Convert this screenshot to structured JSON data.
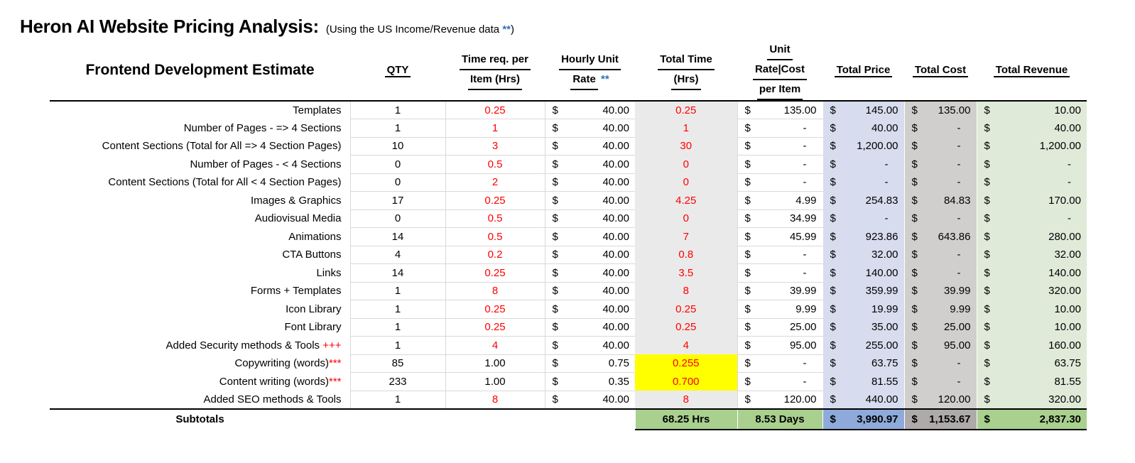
{
  "page": {
    "title": "Heron AI Website Pricing Analysis:",
    "subtitle": {
      "prefix": "(Using the US Income/Revenue data ",
      "stars": "**",
      "suffix": ")"
    }
  },
  "colors": {
    "red": "#FF0000",
    "star_blue": "#2E75B6",
    "gridline": "#D9D9D9",
    "total_time_fill": "#EBEAEA",
    "total_price_fill": "#D7DCEE",
    "total_cost_fill": "#D1CECE",
    "total_revenue_fill": "#DFEAD9",
    "highlight_yellow": "#FFFF00",
    "subtotal_green": "#A9D08E",
    "subtotal_blue": "#8EAADB",
    "subtotal_gray": "#AEAAAA"
  },
  "table": {
    "section_title": "Frontend Development Estimate",
    "currency_symbol": "$",
    "headers": {
      "qty": "QTY",
      "time_req": [
        "Time req. per",
        "Item (Hrs)"
      ],
      "hourly_rate": [
        "Hourly Unit",
        "Rate"
      ],
      "hourly_rate_stars": "**",
      "total_time": [
        "Total Time",
        "(Hrs)"
      ],
      "unit_rate_cost": [
        "Unit",
        "Rate|Cost",
        "per Item"
      ],
      "total_price": "Total Price",
      "total_cost": "Total Cost",
      "total_revenue": "Total Revenue"
    },
    "rows": [
      {
        "label": "Templates",
        "label_suffix": "",
        "qty": "1",
        "time_req": "0.25",
        "time_req_red": true,
        "hourly_rate": "40.00",
        "total_time": "0.25",
        "total_time_yellow": false,
        "unit_rate_cost": "135.00",
        "total_price": "145.00",
        "total_cost": "135.00",
        "total_revenue": "10.00"
      },
      {
        "label": "Number of Pages - => 4 Sections",
        "label_suffix": "",
        "qty": "1",
        "time_req": "1",
        "time_req_red": true,
        "hourly_rate": "40.00",
        "total_time": "1",
        "total_time_yellow": false,
        "unit_rate_cost": "-",
        "total_price": "40.00",
        "total_cost": "-",
        "total_revenue": "40.00"
      },
      {
        "label": "Content Sections (Total for All => 4 Section Pages)",
        "label_suffix": "",
        "qty": "10",
        "time_req": "3",
        "time_req_red": true,
        "hourly_rate": "40.00",
        "total_time": "30",
        "total_time_yellow": false,
        "unit_rate_cost": "-",
        "total_price": "1,200.00",
        "total_cost": "-",
        "total_revenue": "1,200.00"
      },
      {
        "label": "Number of Pages - < 4 Sections",
        "label_suffix": "",
        "qty": "0",
        "time_req": "0.5",
        "time_req_red": true,
        "hourly_rate": "40.00",
        "total_time": "0",
        "total_time_yellow": false,
        "unit_rate_cost": "-",
        "total_price": "-",
        "total_cost": "-",
        "total_revenue": "-"
      },
      {
        "label": "Content Sections (Total for All < 4 Section Pages)",
        "label_suffix": "",
        "qty": "0",
        "time_req": "2",
        "time_req_red": true,
        "hourly_rate": "40.00",
        "total_time": "0",
        "total_time_yellow": false,
        "unit_rate_cost": "-",
        "total_price": "-",
        "total_cost": "-",
        "total_revenue": "-"
      },
      {
        "label": "Images & Graphics",
        "label_suffix": "",
        "qty": "17",
        "time_req": "0.25",
        "time_req_red": true,
        "hourly_rate": "40.00",
        "total_time": "4.25",
        "total_time_yellow": false,
        "unit_rate_cost": "4.99",
        "total_price": "254.83",
        "total_cost": "84.83",
        "total_revenue": "170.00"
      },
      {
        "label": "Audiovisual Media",
        "label_suffix": "",
        "qty": "0",
        "time_req": "0.5",
        "time_req_red": true,
        "hourly_rate": "40.00",
        "total_time": "0",
        "total_time_yellow": false,
        "unit_rate_cost": "34.99",
        "total_price": "-",
        "total_cost": "-",
        "total_revenue": "-"
      },
      {
        "label": "Animations",
        "label_suffix": "",
        "qty": "14",
        "time_req": "0.5",
        "time_req_red": true,
        "hourly_rate": "40.00",
        "total_time": "7",
        "total_time_yellow": false,
        "unit_rate_cost": "45.99",
        "total_price": "923.86",
        "total_cost": "643.86",
        "total_revenue": "280.00"
      },
      {
        "label": "CTA Buttons",
        "label_suffix": "",
        "qty": "4",
        "time_req": "0.2",
        "time_req_red": true,
        "hourly_rate": "40.00",
        "total_time": "0.8",
        "total_time_yellow": false,
        "unit_rate_cost": "-",
        "total_price": "32.00",
        "total_cost": "-",
        "total_revenue": "32.00"
      },
      {
        "label": "Links",
        "label_suffix": "",
        "qty": "14",
        "time_req": "0.25",
        "time_req_red": true,
        "hourly_rate": "40.00",
        "total_time": "3.5",
        "total_time_yellow": false,
        "unit_rate_cost": "-",
        "total_price": "140.00",
        "total_cost": "-",
        "total_revenue": "140.00"
      },
      {
        "label": "Forms + Templates",
        "label_suffix": "",
        "qty": "1",
        "time_req": "8",
        "time_req_red": true,
        "hourly_rate": "40.00",
        "total_time": "8",
        "total_time_yellow": false,
        "unit_rate_cost": "39.99",
        "total_price": "359.99",
        "total_cost": "39.99",
        "total_revenue": "320.00"
      },
      {
        "label": "Icon Library",
        "label_suffix": "",
        "qty": "1",
        "time_req": "0.25",
        "time_req_red": true,
        "hourly_rate": "40.00",
        "total_time": "0.25",
        "total_time_yellow": false,
        "unit_rate_cost": "9.99",
        "total_price": "19.99",
        "total_cost": "9.99",
        "total_revenue": "10.00"
      },
      {
        "label": "Font Library",
        "label_suffix": "",
        "qty": "1",
        "time_req": "0.25",
        "time_req_red": true,
        "hourly_rate": "40.00",
        "total_time": "0.25",
        "total_time_yellow": false,
        "unit_rate_cost": "25.00",
        "total_price": "35.00",
        "total_cost": "25.00",
        "total_revenue": "10.00"
      },
      {
        "label": "Added Security methods & Tools ",
        "label_suffix": "+++",
        "qty": "1",
        "time_req": "4",
        "time_req_red": true,
        "hourly_rate": "40.00",
        "total_time": "4",
        "total_time_yellow": false,
        "unit_rate_cost": "95.00",
        "total_price": "255.00",
        "total_cost": "95.00",
        "total_revenue": "160.00"
      },
      {
        "label": "Copywriting (words)",
        "label_suffix": "***",
        "qty": "85",
        "time_req": "1.00",
        "time_req_red": false,
        "hourly_rate": "0.75",
        "total_time": "0.255",
        "total_time_yellow": true,
        "unit_rate_cost": "-",
        "total_price": "63.75",
        "total_cost": "-",
        "total_revenue": "63.75"
      },
      {
        "label": "Content writing (words)",
        "label_suffix": "***",
        "qty": "233",
        "time_req": "1.00",
        "time_req_red": false,
        "hourly_rate": "0.35",
        "total_time": "0.700",
        "total_time_yellow": true,
        "unit_rate_cost": "-",
        "total_price": "81.55",
        "total_cost": "-",
        "total_revenue": "81.55"
      },
      {
        "label": "Added SEO methods & Tools",
        "label_suffix": "",
        "qty": "1",
        "time_req": "8",
        "time_req_red": true,
        "hourly_rate": "40.00",
        "total_time": "8",
        "total_time_yellow": false,
        "unit_rate_cost": "120.00",
        "total_price": "440.00",
        "total_cost": "120.00",
        "total_revenue": "320.00"
      }
    ],
    "subtotals": {
      "label": "Subtotals",
      "total_time": "68.25 Hrs",
      "unit_days": "8.53 Days",
      "total_price": "3,990.97",
      "total_cost": "1,153.67",
      "total_revenue": "2,837.30"
    }
  }
}
